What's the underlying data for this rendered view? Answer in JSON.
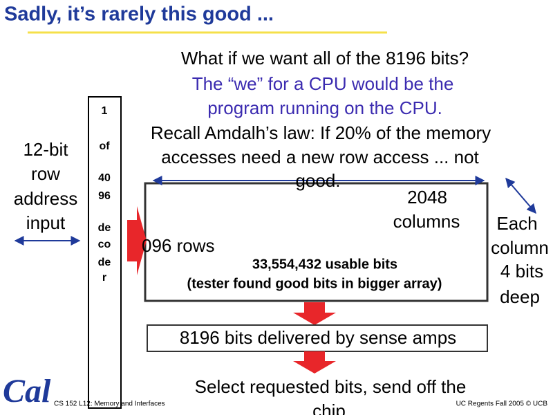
{
  "title": "Sadly, it’s rarely this good ...",
  "row_address_label": [
    "12-bit",
    "row",
    "address",
    "input"
  ],
  "decoder_label": [
    "1",
    "of",
    "40",
    "96",
    "de",
    "co",
    "de",
    "r"
  ],
  "overlay": [
    "What if we want all of the 8196 bits?",
    "The “we” for a CPU would be the",
    "program running on the CPU.",
    "Recall Amdalh’s law: If 20% of the memory",
    "accesses need a new row access ... not",
    "good."
  ],
  "columns_label": [
    "2048",
    "columns"
  ],
  "depth_label": [
    "Each",
    "column",
    "4 bits",
    "deep"
  ],
  "rows_label": "096 rows",
  "array_text": [
    "33,554,432 usable bits",
    "(tester found good bits in bigger array)"
  ],
  "sense_amps": "8196 bits delivered by sense amps",
  "select_text": [
    "Select requested bits, send off the",
    "chip"
  ],
  "footer": {
    "logo": "Cal",
    "left": "CS 152 L12: Memory and Interfaces",
    "right": "UC Regents Fall 2005 © UCB"
  }
}
